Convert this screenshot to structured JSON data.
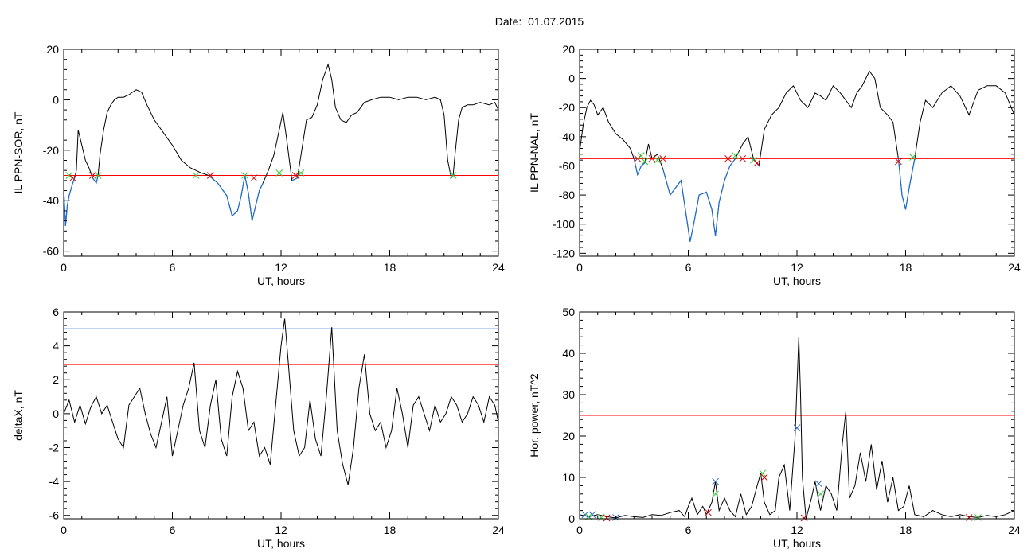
{
  "header": {
    "date_label": "Date:",
    "date_value": "01.07.2015"
  },
  "colors": {
    "trace": "#000000",
    "threshold_red": "#ff0000",
    "threshold_blue": "#0055cc",
    "highlight_blue": "#1f6fd6",
    "marker_green": "#33cc33",
    "marker_red": "#dd0000",
    "marker_blue": "#2266cc"
  },
  "chart_data": [
    {
      "id": "ppn_sor",
      "type": "line",
      "ylabel": "IL PPN-SOR, nT",
      "xlabel": "UT, hours",
      "xlim": [
        0,
        24
      ],
      "ylim": [
        -62,
        20
      ],
      "xticks": [
        0,
        6,
        12,
        18,
        24
      ],
      "yticks": [
        -60,
        -40,
        -20,
        0,
        20
      ],
      "grid": false,
      "threshold": {
        "y": -30,
        "color": "red"
      },
      "series": [
        {
          "x": [
            0,
            0.1,
            0.2,
            0.3,
            0.5,
            0.6,
            0.7,
            0.8,
            1.0,
            1.2,
            1.4,
            1.6,
            1.8,
            1.9,
            2.0,
            2.2,
            2.4,
            2.6,
            2.8,
            3.0,
            3.3,
            3.6,
            3.8,
            4.0,
            4.3,
            4.6,
            5.0,
            5.5,
            6.0,
            6.5,
            7.0,
            7.3,
            7.6,
            8.0,
            8.5,
            9.0,
            9.3,
            9.6,
            9.8,
            10.0,
            10.2,
            10.4,
            10.6,
            10.8,
            11.0,
            11.3,
            11.6,
            11.9,
            12.1,
            12.3,
            12.6,
            12.9,
            13.1,
            13.4,
            13.7,
            14.0,
            14.3,
            14.6,
            14.8,
            15.0,
            15.3,
            15.6,
            15.9,
            16.2,
            16.6,
            17.0,
            17.5,
            18.0,
            18.5,
            19.0,
            19.5,
            20.0,
            20.5,
            20.8,
            21.0,
            21.2,
            21.4,
            21.5,
            21.6,
            21.8,
            22.0,
            22.3,
            22.6,
            23.0,
            23.5,
            23.8,
            24.0
          ],
          "y": [
            -35,
            -50,
            -42,
            -38,
            -33,
            -31,
            -28,
            -12,
            -18,
            -24,
            -27,
            -31,
            -33,
            -30,
            -22,
            -12,
            -5,
            -2,
            0,
            1,
            1,
            2,
            3,
            4,
            3,
            -2,
            -8,
            -13,
            -18,
            -24,
            -27,
            -28,
            -29,
            -30,
            -33,
            -38,
            -46,
            -44,
            -38,
            -30,
            -37,
            -48,
            -42,
            -36,
            -33,
            -28,
            -22,
            -12,
            -5,
            -15,
            -32,
            -31,
            -22,
            -8,
            -7,
            -2,
            8,
            14,
            8,
            -3,
            -8,
            -9,
            -6,
            -5,
            -1,
            0,
            1,
            1,
            0,
            1,
            1,
            0,
            1,
            0,
            -6,
            -24,
            -31,
            -30,
            -22,
            -8,
            -3,
            -2,
            -2,
            -1,
            -2,
            -1,
            -4
          ]
        }
      ],
      "markers": [
        {
          "x": 0.3,
          "y": -30,
          "color": "green"
        },
        {
          "x": 0.5,
          "y": -31,
          "color": "red"
        },
        {
          "x": 1.6,
          "y": -30,
          "color": "red"
        },
        {
          "x": 1.9,
          "y": -30,
          "color": "green"
        },
        {
          "x": 7.3,
          "y": -30,
          "color": "green"
        },
        {
          "x": 8.1,
          "y": -30,
          "color": "red"
        },
        {
          "x": 10.0,
          "y": -30,
          "color": "green"
        },
        {
          "x": 10.5,
          "y": -31,
          "color": "red"
        },
        {
          "x": 11.9,
          "y": -29,
          "color": "green"
        },
        {
          "x": 12.8,
          "y": -30,
          "color": "red"
        },
        {
          "x": 13.1,
          "y": -29,
          "color": "green"
        },
        {
          "x": 21.5,
          "y": -30,
          "color": "green"
        }
      ]
    },
    {
      "id": "ppn_nal",
      "type": "line",
      "ylabel": "IL PPN-NAL, nT",
      "xlabel": "UT, hours",
      "xlim": [
        0,
        24
      ],
      "ylim": [
        -122,
        20
      ],
      "xticks": [
        0,
        6,
        12,
        18,
        24
      ],
      "yticks": [
        -120,
        -100,
        -80,
        -60,
        -40,
        -20,
        0,
        20
      ],
      "grid": false,
      "threshold": {
        "y": -55,
        "color": "red"
      },
      "series": [
        {
          "x": [
            0,
            0.2,
            0.4,
            0.6,
            0.8,
            1.0,
            1.3,
            1.6,
            2.0,
            2.4,
            2.8,
            3.0,
            3.2,
            3.4,
            3.6,
            3.8,
            4.0,
            4.3,
            4.6,
            5.0,
            5.3,
            5.6,
            5.9,
            6.1,
            6.3,
            6.6,
            7.0,
            7.3,
            7.5,
            7.7,
            8.0,
            8.3,
            8.6,
            9.0,
            9.3,
            9.6,
            9.9,
            10.2,
            10.6,
            11.0,
            11.4,
            11.8,
            12.2,
            12.6,
            13.0,
            13.3,
            13.6,
            14.0,
            14.4,
            14.7,
            15.0,
            15.3,
            15.6,
            16.0,
            16.3,
            16.6,
            17.0,
            17.3,
            17.6,
            17.8,
            18.0,
            18.2,
            18.5,
            18.8,
            19.1,
            19.5,
            20.0,
            20.5,
            21.0,
            21.5,
            22.0,
            22.5,
            23.0,
            23.5,
            24.0
          ],
          "y": [
            -50,
            -32,
            -20,
            -15,
            -18,
            -25,
            -20,
            -30,
            -38,
            -42,
            -48,
            -55,
            -66,
            -60,
            -58,
            -45,
            -55,
            -52,
            -62,
            -80,
            -75,
            -70,
            -95,
            -112,
            -100,
            -80,
            -78,
            -90,
            -108,
            -85,
            -70,
            -60,
            -55,
            -45,
            -40,
            -55,
            -60,
            -35,
            -25,
            -20,
            -10,
            -5,
            -15,
            -20,
            -10,
            -12,
            -15,
            -5,
            -10,
            -15,
            -20,
            -10,
            -5,
            5,
            0,
            -20,
            -25,
            -30,
            -55,
            -80,
            -90,
            -75,
            -55,
            -30,
            -15,
            -20,
            -10,
            -5,
            -12,
            -25,
            -8,
            -5,
            -5,
            -10,
            -25
          ]
        }
      ],
      "markers": [
        {
          "x": 3.2,
          "y": -55,
          "color": "red"
        },
        {
          "x": 3.4,
          "y": -53,
          "color": "green"
        },
        {
          "x": 3.6,
          "y": -57,
          "color": "green"
        },
        {
          "x": 4.0,
          "y": -55,
          "color": "red"
        },
        {
          "x": 4.3,
          "y": -56,
          "color": "green"
        },
        {
          "x": 4.6,
          "y": -55,
          "color": "red"
        },
        {
          "x": 8.2,
          "y": -55,
          "color": "red"
        },
        {
          "x": 8.6,
          "y": -53,
          "color": "green"
        },
        {
          "x": 9.0,
          "y": -55,
          "color": "red"
        },
        {
          "x": 9.6,
          "y": -56,
          "color": "green"
        },
        {
          "x": 9.8,
          "y": -58,
          "color": "red"
        },
        {
          "x": 17.6,
          "y": -57,
          "color": "red"
        },
        {
          "x": 18.4,
          "y": -54,
          "color": "green"
        }
      ]
    },
    {
      "id": "delta_x",
      "type": "line",
      "ylabel": "deltaX, nT",
      "xlabel": "UT, hours",
      "xlim": [
        0,
        24
      ],
      "ylim": [
        -6.2,
        6
      ],
      "xticks": [
        0,
        6,
        12,
        18,
        24
      ],
      "yticks": [
        -6,
        -4,
        -2,
        0,
        2,
        4,
        6
      ],
      "grid": false,
      "thresholds": [
        {
          "y": 5.0,
          "color": "blue"
        },
        {
          "y": 2.9,
          "color": "red"
        }
      ],
      "series": [
        {
          "x": [
            0,
            0.3,
            0.6,
            0.9,
            1.2,
            1.5,
            1.8,
            2.1,
            2.4,
            2.7,
            3.0,
            3.3,
            3.6,
            3.9,
            4.2,
            4.5,
            4.8,
            5.1,
            5.4,
            5.7,
            6.0,
            6.3,
            6.6,
            6.9,
            7.2,
            7.5,
            7.8,
            8.1,
            8.4,
            8.7,
            9.0,
            9.3,
            9.6,
            9.9,
            10.2,
            10.5,
            10.8,
            11.1,
            11.4,
            11.7,
            12.0,
            12.2,
            12.4,
            12.7,
            13.0,
            13.3,
            13.6,
            13.9,
            14.2,
            14.5,
            14.8,
            15.1,
            15.4,
            15.7,
            16.0,
            16.3,
            16.6,
            16.9,
            17.2,
            17.5,
            17.8,
            18.1,
            18.4,
            18.7,
            19.0,
            19.3,
            19.6,
            19.9,
            20.2,
            20.5,
            20.8,
            21.1,
            21.4,
            21.7,
            22.0,
            22.3,
            22.6,
            22.9,
            23.2,
            23.5,
            23.8,
            24.0
          ],
          "y": [
            0,
            0.8,
            -0.5,
            0.5,
            -0.6,
            0.4,
            1.0,
            0,
            0.5,
            -0.5,
            -1.5,
            -2.0,
            0.5,
            1.0,
            1.5,
            0,
            -1.2,
            -2.0,
            -0.5,
            1.0,
            -2.5,
            -1.0,
            0.5,
            1.5,
            3.0,
            -1.0,
            -2.0,
            0.5,
            2.0,
            -1.5,
            -2.5,
            1.0,
            2.5,
            1.5,
            -1.0,
            -0.5,
            -2.5,
            -2.0,
            -3.0,
            0.5,
            4.0,
            5.6,
            3.0,
            -1.0,
            -2.5,
            -2.0,
            0.8,
            -1.5,
            -2.5,
            1.0,
            5.1,
            -1.0,
            -3.0,
            -4.2,
            -2.0,
            1.5,
            3.5,
            0,
            -1.0,
            -0.5,
            -2.0,
            -1.0,
            1.5,
            0,
            -2.0,
            0.5,
            1.0,
            0,
            -1.0,
            0.5,
            -0.5,
            0,
            1.0,
            0.5,
            -0.5,
            0,
            1.0,
            0.5,
            -0.5,
            1.0,
            0.5,
            -0.5
          ]
        }
      ]
    },
    {
      "id": "hor_power",
      "type": "line",
      "ylabel": "Hor. power, nT^2",
      "xlabel": "UT, hours",
      "xlim": [
        0,
        24
      ],
      "ylim": [
        0,
        50
      ],
      "xticks": [
        0,
        6,
        12,
        18,
        24
      ],
      "yticks": [
        0,
        10,
        20,
        30,
        40,
        50
      ],
      "grid": false,
      "threshold": {
        "y": 25,
        "color": "red"
      },
      "series": [
        {
          "x": [
            0,
            0.5,
            1.0,
            1.5,
            2.0,
            2.5,
            3.0,
            3.5,
            4.0,
            4.5,
            5.0,
            5.5,
            5.8,
            6.0,
            6.2,
            6.5,
            6.8,
            7.0,
            7.3,
            7.5,
            7.7,
            8.0,
            8.3,
            8.6,
            8.9,
            9.2,
            9.5,
            9.8,
            10.0,
            10.2,
            10.5,
            10.8,
            11.0,
            11.3,
            11.6,
            11.9,
            12.1,
            12.2,
            12.3,
            12.5,
            12.8,
            13.0,
            13.3,
            13.6,
            13.9,
            14.2,
            14.5,
            14.7,
            14.9,
            15.2,
            15.5,
            15.8,
            16.1,
            16.4,
            16.7,
            17.0,
            17.3,
            17.6,
            17.9,
            18.2,
            18.5,
            19.0,
            19.5,
            20.0,
            20.5,
            21.0,
            21.5,
            22.0,
            22.5,
            23.0,
            23.5,
            24.0
          ],
          "y": [
            1,
            0.5,
            1,
            0.5,
            0.2,
            0.8,
            0.5,
            0.3,
            1,
            0.8,
            1.5,
            2,
            0.5,
            3,
            5,
            1,
            3,
            1,
            4,
            9,
            2,
            5,
            2,
            0.5,
            6,
            1,
            3,
            8,
            11,
            4,
            1,
            2,
            10,
            13,
            2,
            20,
            44,
            30,
            10,
            0,
            5,
            9,
            2,
            8,
            6,
            2,
            18,
            26,
            5,
            8,
            16,
            9,
            18,
            7,
            14,
            4,
            10,
            2,
            3,
            8,
            1,
            0.5,
            2,
            1,
            0.5,
            1,
            0.5,
            0.3,
            0.8,
            0.5,
            1,
            2
          ]
        }
      ],
      "markers": [
        {
          "x": 0.3,
          "y": 1,
          "color": "blue"
        },
        {
          "x": 0.5,
          "y": 0.5,
          "color": "green"
        },
        {
          "x": 0.7,
          "y": 1,
          "color": "blue"
        },
        {
          "x": 1.2,
          "y": 0.3,
          "color": "green"
        },
        {
          "x": 1.5,
          "y": 0.2,
          "color": "red"
        },
        {
          "x": 2.0,
          "y": 0.3,
          "color": "blue"
        },
        {
          "x": 7.1,
          "y": 1.5,
          "color": "red"
        },
        {
          "x": 7.5,
          "y": 9,
          "color": "blue"
        },
        {
          "x": 7.5,
          "y": 6,
          "color": "green"
        },
        {
          "x": 10.1,
          "y": 11,
          "color": "green"
        },
        {
          "x": 10.2,
          "y": 10,
          "color": "red"
        },
        {
          "x": 12.0,
          "y": 22,
          "color": "blue"
        },
        {
          "x": 12.4,
          "y": 0.2,
          "color": "red"
        },
        {
          "x": 13.2,
          "y": 8.5,
          "color": "blue"
        },
        {
          "x": 13.3,
          "y": 6,
          "color": "green"
        },
        {
          "x": 21.5,
          "y": 0.3,
          "color": "red"
        },
        {
          "x": 22.0,
          "y": 0.3,
          "color": "green"
        }
      ]
    }
  ]
}
